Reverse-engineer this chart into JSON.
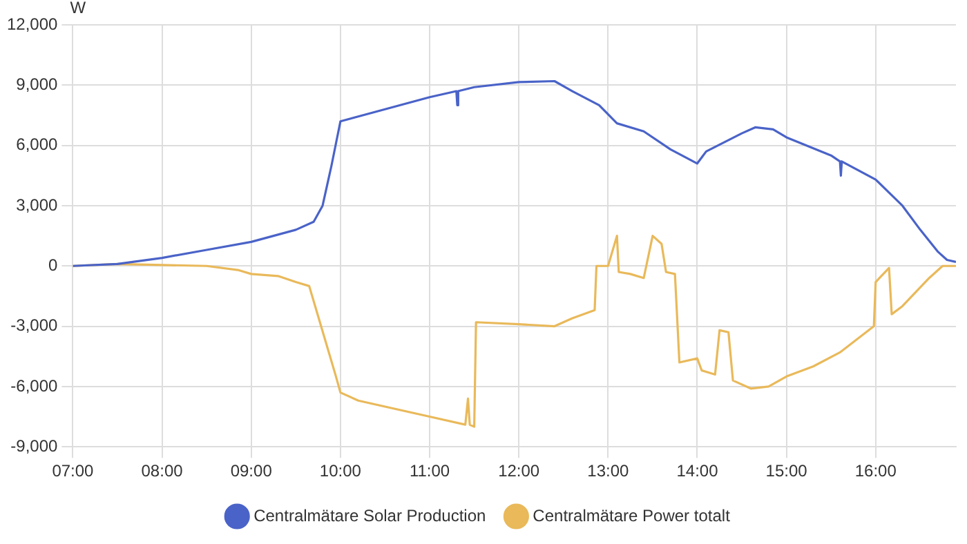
{
  "chart_data": {
    "type": "line",
    "ylabel": "W",
    "xlim": [
      7,
      16.9
    ],
    "xticks": [
      {
        "value": 7,
        "label": "07:00"
      },
      {
        "value": 8,
        "label": "08:00"
      },
      {
        "value": 9,
        "label": "09:00"
      },
      {
        "value": 10,
        "label": "10:00"
      },
      {
        "value": 11,
        "label": "11:00"
      },
      {
        "value": 12,
        "label": "12:00"
      },
      {
        "value": 13,
        "label": "13:00"
      },
      {
        "value": 14,
        "label": "14:00"
      },
      {
        "value": 15,
        "label": "15:00"
      },
      {
        "value": 16,
        "label": "16:00"
      }
    ],
    "ylim": [
      -9000,
      12000
    ],
    "yticks": [
      {
        "value": -9000,
        "label": "-9,000"
      },
      {
        "value": -6000,
        "label": "-6,000"
      },
      {
        "value": -3000,
        "label": "-3,000"
      },
      0,
      {
        "value": 3000,
        "label": "3,000"
      },
      {
        "value": 6000,
        "label": "6,000"
      },
      {
        "value": 9000,
        "label": "9,000"
      },
      {
        "value": 12000,
        "label": "12,000"
      }
    ],
    "grid": true,
    "legend": "bottom",
    "series": [
      {
        "name": "Centralmätare Solar Production",
        "color": "#4a63c8",
        "x": [
          7,
          7.5,
          8,
          8.5,
          9,
          9.5,
          9.7,
          9.8,
          9.9,
          10,
          10.25,
          10.5,
          11,
          11.3,
          11.31,
          11.32,
          11.5,
          12,
          12.4,
          12.6,
          12.9,
          13.1,
          13.4,
          13.7,
          14,
          14.1,
          14.5,
          14.65,
          14.85,
          15,
          15.5,
          15.6,
          15.61,
          15.62,
          16,
          16.3,
          16.5,
          16.7,
          16.8,
          16.9
        ],
        "values": [
          0,
          100,
          400,
          800,
          1200,
          1800,
          2200,
          3000,
          5000,
          7200,
          7500,
          7800,
          8400,
          8700,
          8000,
          8700,
          8900,
          9150,
          9200,
          8700,
          8000,
          7100,
          6700,
          5800,
          5100,
          5700,
          6600,
          6900,
          6800,
          6400,
          5500,
          5200,
          4500,
          5200,
          4300,
          3000,
          1800,
          700,
          300,
          200
        ]
      },
      {
        "name": "Centralmätare Power totalt",
        "color": "#e9b95a",
        "x": [
          7,
          7.5,
          8.5,
          8.85,
          9,
          9.3,
          9.5,
          9.65,
          9.75,
          9.95,
          10,
          10.2,
          10.5,
          11,
          11.4,
          11.43,
          11.45,
          11.5,
          11.52,
          12,
          12.4,
          12.6,
          12.85,
          12.87,
          13,
          13.1,
          13.12,
          13.25,
          13.4,
          13.5,
          13.6,
          13.65,
          13.75,
          13.8,
          14,
          14.05,
          14.2,
          14.25,
          14.35,
          14.4,
          14.6,
          14.8,
          15,
          15.3,
          15.6,
          15.98,
          16,
          16.15,
          16.18,
          16.3,
          16.6,
          16.75,
          16.9
        ],
        "values": [
          0,
          100,
          0,
          -200,
          -400,
          -500,
          -800,
          -1000,
          -2500,
          -5500,
          -6300,
          -6700,
          -7000,
          -7500,
          -7900,
          -6600,
          -7900,
          -8000,
          -2800,
          -2900,
          -3000,
          -2600,
          -2200,
          0,
          0,
          1500,
          -300,
          -400,
          -600,
          1500,
          1100,
          -300,
          -400,
          -4800,
          -4600,
          -5200,
          -5400,
          -3200,
          -3300,
          -5700,
          -6100,
          -6000,
          -5500,
          -5000,
          -4300,
          -3000,
          -800,
          -100,
          -2400,
          -2000,
          -600,
          0,
          0
        ]
      }
    ]
  }
}
